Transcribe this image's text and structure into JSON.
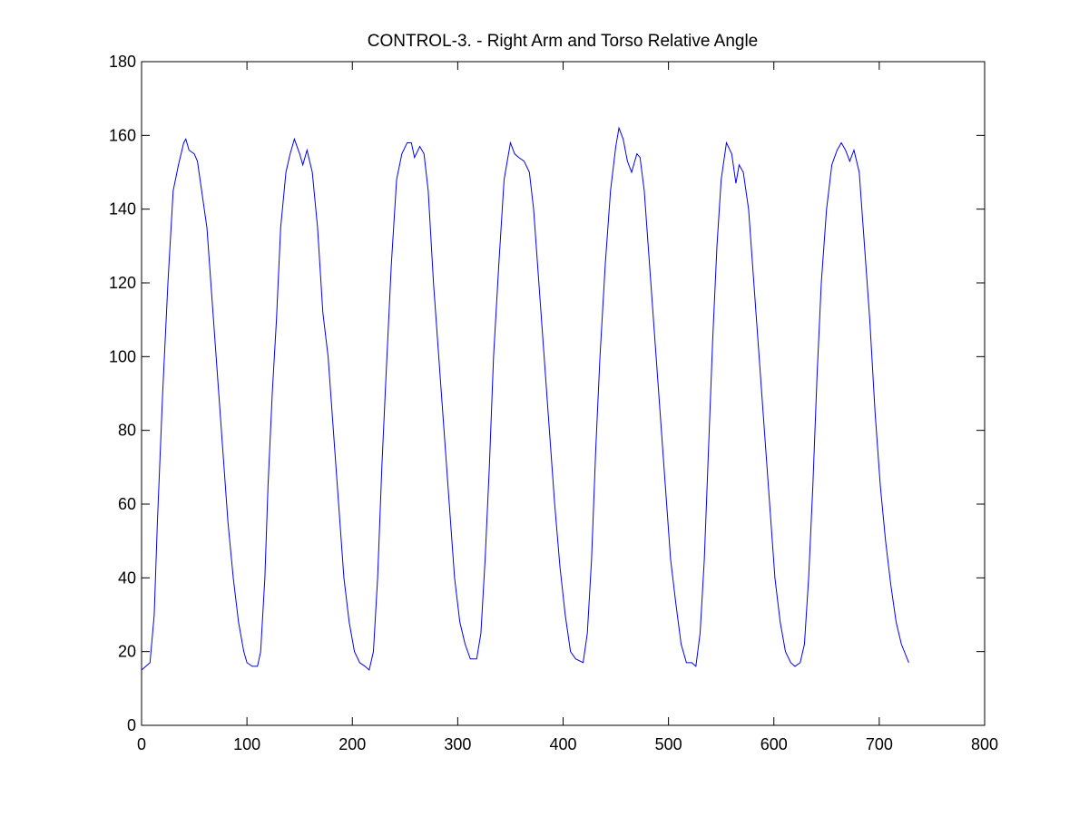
{
  "chart_data": {
    "type": "line",
    "title": "CONTROL-3. - Right Arm and Torso Relative Angle",
    "series": [
      {
        "color": "#0000ff",
        "x": [
          0,
          8,
          12,
          15,
          20,
          25,
          30,
          35,
          40,
          42,
          45,
          50,
          53,
          57,
          62,
          67,
          72,
          77,
          82,
          87,
          92,
          97,
          100,
          105,
          110,
          113,
          117,
          120,
          124,
          128,
          132,
          137,
          141,
          145,
          150,
          153,
          157,
          162,
          167,
          172,
          177,
          182,
          187,
          192,
          197,
          202,
          207,
          212,
          216,
          220,
          224,
          228,
          232,
          237,
          242,
          247,
          252,
          256,
          259,
          264,
          268,
          272,
          277,
          282,
          287,
          292,
          297,
          302,
          307,
          312,
          318,
          322,
          326,
          330,
          334,
          339,
          344,
          350,
          354,
          358,
          363,
          368,
          372,
          377,
          382,
          387,
          392,
          397,
          402,
          407,
          412,
          419,
          423,
          427,
          431,
          435,
          440,
          445,
          450,
          453,
          457,
          461,
          465,
          470,
          473,
          477,
          482,
          487,
          492,
          497,
          502,
          507,
          512,
          517,
          522,
          526,
          530,
          534,
          538,
          542,
          546,
          550,
          555,
          560,
          564,
          567,
          571,
          576,
          581,
          586,
          591,
          596,
          601,
          606,
          611,
          616,
          620,
          625,
          629,
          633,
          637,
          641,
          645,
          650,
          655,
          660,
          664,
          668,
          672,
          676,
          681,
          686,
          691,
          696,
          701,
          706,
          711,
          716,
          721,
          728
        ],
        "values": [
          15,
          17,
          30,
          55,
          90,
          120,
          145,
          152,
          158,
          159,
          156,
          155,
          153,
          145,
          135,
          115,
          95,
          75,
          55,
          40,
          28,
          20,
          17,
          16,
          16,
          20,
          40,
          65,
          90,
          110,
          135,
          150,
          155,
          159,
          155,
          152,
          156,
          150,
          135,
          112,
          100,
          80,
          60,
          40,
          28,
          20,
          17,
          16,
          15,
          20,
          40,
          70,
          95,
          125,
          148,
          155,
          158,
          158,
          154,
          157,
          155,
          145,
          120,
          100,
          80,
          60,
          40,
          28,
          22,
          18,
          18,
          25,
          45,
          70,
          100,
          125,
          148,
          158,
          155,
          154,
          153,
          150,
          140,
          120,
          100,
          80,
          60,
          43,
          30,
          20,
          18,
          17,
          25,
          45,
          75,
          100,
          125,
          145,
          157,
          162,
          159,
          153,
          150,
          155,
          154,
          145,
          125,
          105,
          85,
          65,
          45,
          33,
          22,
          17,
          17,
          16,
          25,
          45,
          75,
          105,
          130,
          148,
          158,
          155,
          147,
          152,
          150,
          140,
          120,
          100,
          80,
          60,
          40,
          28,
          20,
          17,
          16,
          17,
          22,
          40,
          65,
          95,
          120,
          140,
          152,
          156,
          158,
          156,
          153,
          156,
          150,
          130,
          110,
          85,
          65,
          50,
          38,
          28,
          22,
          17
        ]
      }
    ],
    "xlim": [
      0,
      800
    ],
    "xticks": [
      0,
      100,
      200,
      300,
      400,
      500,
      600,
      700,
      800
    ],
    "ylim": [
      0,
      180
    ],
    "yticks": [
      0,
      20,
      40,
      60,
      80,
      100,
      120,
      140,
      160,
      180
    ]
  }
}
